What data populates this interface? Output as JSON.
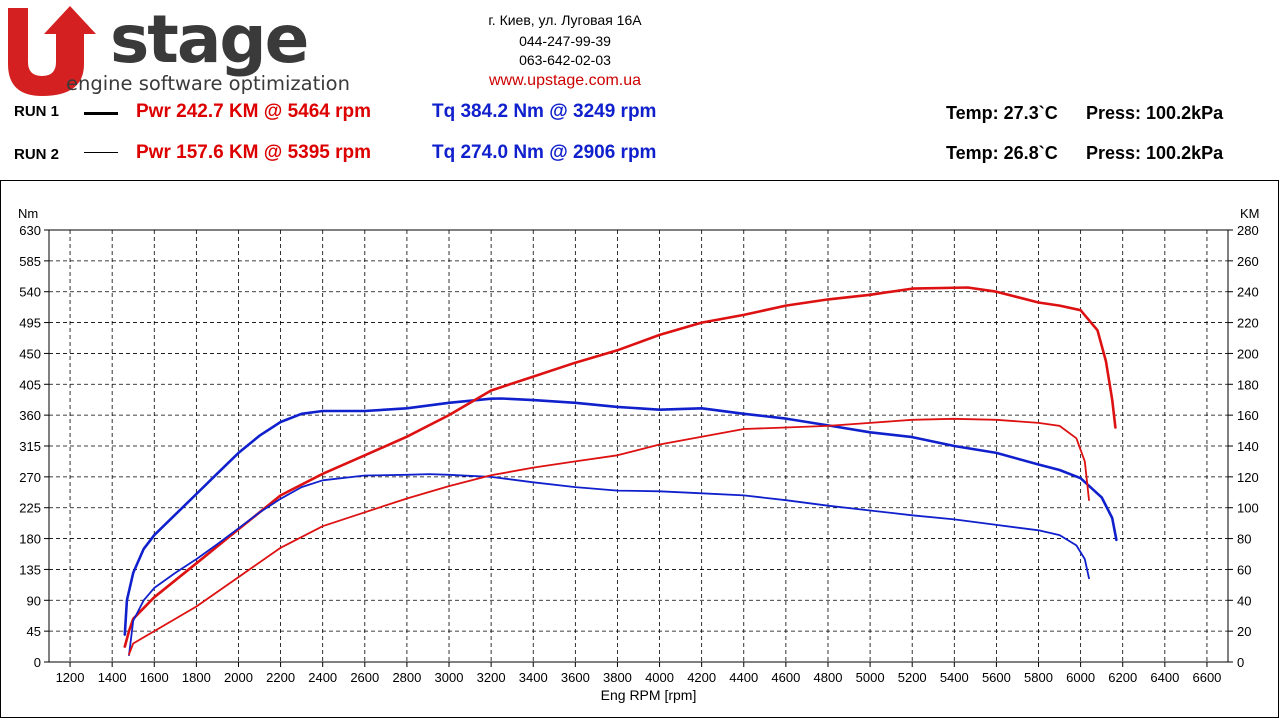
{
  "header": {
    "logo_text": "UPstage",
    "logo_tagline": "engine software optimization",
    "address": "г. Киев, ул. Луговая 16А",
    "phone1": "044-247-99-39",
    "phone2": "063-642-02-03",
    "website": "www.upstage.com.ua"
  },
  "runs": [
    {
      "label": "RUN 1",
      "power": "Pwr  242.7 KM @ 5464 rpm",
      "torque": "Tq 384.2 Nm @ 3249 rpm",
      "temp": "Temp: 27.3`C",
      "press": "Press: 100.2kPa"
    },
    {
      "label": "RUN 2",
      "power": "Pwr  157.6 KM @ 5395 rpm",
      "torque": "Tq 274.0 Nm @ 2906 rpm",
      "temp": "Temp: 26.8`C",
      "press": "Press: 100.2kPa"
    }
  ],
  "colors": {
    "power": "#dd1111",
    "torque": "#1020cc",
    "logo_red": "#d42020",
    "logo_gray": "#3a3a3a"
  },
  "chart_data": {
    "type": "line",
    "xlabel": "Eng RPM [rpm]",
    "ylabel_left": "Nm",
    "ylabel_right": "KM",
    "xlim": [
      1100,
      6700
    ],
    "xticks": [
      1200,
      1400,
      1600,
      1800,
      2000,
      2200,
      2400,
      2600,
      2800,
      3000,
      3200,
      3400,
      3600,
      3800,
      4000,
      4200,
      4400,
      4600,
      4800,
      5000,
      5200,
      5400,
      5600,
      5800,
      6000,
      6200,
      6400,
      6600
    ],
    "ylim_left": [
      0,
      630
    ],
    "yticks_left": [
      0,
      45,
      90,
      135,
      180,
      225,
      270,
      315,
      360,
      405,
      450,
      495,
      540,
      585,
      630
    ],
    "ylim_right": [
      0,
      280
    ],
    "yticks_right": [
      0,
      20,
      40,
      60,
      80,
      100,
      120,
      140,
      160,
      180,
      200,
      220,
      240,
      260,
      280
    ],
    "grid": true,
    "series": [
      {
        "run": "RUN 1",
        "quantity": "torque",
        "axis": "left",
        "color": "#1020cc",
        "width": 2.6,
        "x": [
          1460,
          1470,
          1500,
          1550,
          1600,
          1700,
          1800,
          1900,
          2000,
          2100,
          2200,
          2300,
          2400,
          2600,
          2800,
          3000,
          3200,
          3249,
          3400,
          3600,
          3800,
          4000,
          4200,
          4400,
          4600,
          4800,
          5000,
          5200,
          5400,
          5600,
          5800,
          5900,
          6000,
          6100,
          6150,
          6170
        ],
        "y": [
          40,
          90,
          130,
          165,
          185,
          215,
          245,
          275,
          305,
          330,
          350,
          362,
          366,
          366,
          370,
          378,
          384,
          384.2,
          382,
          378,
          372,
          368,
          370,
          362,
          355,
          345,
          335,
          328,
          315,
          305,
          288,
          280,
          268,
          240,
          210,
          178
        ]
      },
      {
        "run": "RUN 1",
        "quantity": "power",
        "axis": "right",
        "color": "#dd1111",
        "width": 2.6,
        "x": [
          1460,
          1480,
          1500,
          1600,
          1800,
          2000,
          2200,
          2400,
          2600,
          2800,
          3000,
          3200,
          3400,
          3600,
          3800,
          4000,
          4200,
          4400,
          4600,
          4800,
          5000,
          5200,
          5464,
          5600,
          5800,
          5900,
          6000,
          6080,
          6120,
          6150,
          6165
        ],
        "y": [
          10,
          20,
          28,
          42,
          64,
          86,
          108,
          122,
          134,
          146,
          160,
          176,
          185,
          194,
          202,
          212,
          220,
          225,
          231,
          235,
          238,
          242,
          242.7,
          240,
          233,
          231,
          228,
          215,
          195,
          170,
          152
        ]
      },
      {
        "run": "RUN 2",
        "quantity": "torque",
        "axis": "left",
        "color": "#1020cc",
        "width": 1.8,
        "x": [
          1480,
          1500,
          1550,
          1600,
          1700,
          1800,
          1900,
          2000,
          2100,
          2200,
          2300,
          2400,
          2600,
          2800,
          2906,
          3000,
          3200,
          3400,
          3600,
          3800,
          4000,
          4200,
          4400,
          4600,
          4800,
          5000,
          5200,
          5400,
          5600,
          5800,
          5900,
          5980,
          6020,
          6040
        ],
        "y": [
          10,
          60,
          90,
          108,
          130,
          150,
          172,
          195,
          218,
          238,
          255,
          265,
          272,
          273,
          274,
          273,
          270,
          262,
          255,
          250,
          249,
          246,
          243,
          236,
          228,
          221,
          214,
          208,
          200,
          192,
          185,
          170,
          150,
          122
        ]
      },
      {
        "run": "RUN 2",
        "quantity": "power",
        "axis": "right",
        "color": "#dd1111",
        "width": 1.8,
        "x": [
          1480,
          1500,
          1600,
          1800,
          2000,
          2200,
          2400,
          2600,
          2800,
          3000,
          3200,
          3400,
          3600,
          3800,
          4000,
          4200,
          4400,
          4600,
          4800,
          5000,
          5200,
          5395,
          5600,
          5800,
          5900,
          5980,
          6020,
          6040
        ],
        "y": [
          5,
          12,
          20,
          36,
          55,
          74,
          88,
          97,
          106,
          114,
          121,
          126,
          130,
          134,
          141,
          146,
          151,
          152,
          153,
          155,
          157,
          157.6,
          157,
          155,
          153,
          145,
          130,
          105
        ]
      }
    ]
  }
}
